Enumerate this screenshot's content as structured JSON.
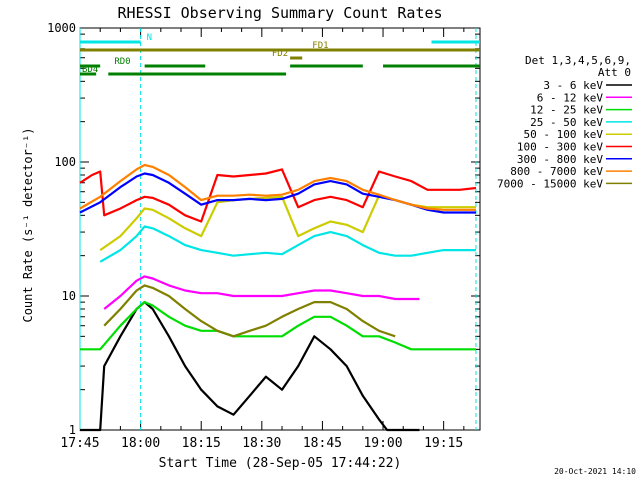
{
  "chart_data": {
    "type": "line",
    "title": "RHESSI Observing Summary Count Rates",
    "xlabel": "Start Time (28-Sep-05 17:44:22)",
    "ylabel": "Count Rate (s⁻¹ detector⁻¹)",
    "yscale": "log",
    "ylim": [
      1,
      1000
    ],
    "xlim_minutes": [
      0,
      99
    ],
    "x_unit": "minutes after 17:45",
    "x_ticks": [
      {
        "t": 0,
        "label": "17:45"
      },
      {
        "t": 15,
        "label": "18:00"
      },
      {
        "t": 30,
        "label": "18:15"
      },
      {
        "t": 45,
        "label": "18:30"
      },
      {
        "t": 60,
        "label": "18:45"
      },
      {
        "t": 75,
        "label": "19:00"
      },
      {
        "t": 90,
        "label": "19:15"
      }
    ],
    "y_ticks": [
      {
        "v": 1,
        "label": "1"
      },
      {
        "v": 10,
        "label": "10"
      },
      {
        "v": 100,
        "label": "100"
      },
      {
        "v": 1000,
        "label": "1000"
      }
    ],
    "legend_header": [
      "Det 1,3,4,5,6,9,",
      "Att 0"
    ],
    "legend_position": "right",
    "series": [
      {
        "name": "3 - 6 keV",
        "color": "#000000",
        "x": [
          0,
          5,
          6,
          10,
          14,
          16,
          18,
          22,
          26,
          30,
          34,
          38,
          42,
          46,
          50,
          54,
          58,
          62,
          66,
          70,
          74,
          76,
          80,
          84
        ],
        "y": [
          1,
          1,
          3,
          5,
          8,
          9,
          8,
          5,
          3,
          2,
          1.5,
          1.3,
          1.8,
          2.5,
          2,
          3,
          5,
          4,
          3,
          1.8,
          1.2,
          1,
          1,
          1
        ]
      },
      {
        "name": "6 - 12 keV",
        "color": "#ff00ff",
        "x": [
          6,
          10,
          14,
          16,
          18,
          22,
          26,
          30,
          34,
          38,
          42,
          46,
          50,
          54,
          58,
          62,
          66,
          70,
          74,
          78,
          84
        ],
        "y": [
          8,
          10,
          13,
          14,
          13.5,
          12,
          11,
          10.5,
          10.5,
          10,
          10,
          10,
          10,
          10.5,
          11,
          11,
          10.5,
          10,
          10,
          9.5,
          9.5
        ]
      },
      {
        "name": "12 - 25 keV",
        "color": "#00dd00",
        "x": [
          0,
          5,
          10,
          14,
          16,
          18,
          22,
          26,
          30,
          34,
          38,
          42,
          46,
          50,
          54,
          58,
          62,
          66,
          70,
          74,
          78,
          82,
          86,
          90,
          94,
          98
        ],
        "y": [
          4,
          4,
          6,
          8,
          9,
          8.5,
          7,
          6,
          5.5,
          5.5,
          5,
          5,
          5,
          5,
          6,
          7,
          7,
          6,
          5,
          5,
          4.5,
          4,
          4,
          4,
          4,
          4
        ]
      },
      {
        "name": "25 - 50 keV",
        "color": "#00e5e5",
        "x": [
          5,
          10,
          14,
          16,
          18,
          22,
          26,
          30,
          34,
          38,
          42,
          46,
          50,
          54,
          58,
          62,
          66,
          70,
          74,
          78,
          82,
          86,
          90,
          94,
          98
        ],
        "y": [
          18,
          22,
          28,
          33,
          32,
          28,
          24,
          22,
          21,
          20,
          20.5,
          21,
          20.5,
          24,
          28,
          30,
          28,
          24,
          21,
          20,
          20,
          21,
          22,
          22,
          22
        ]
      },
      {
        "name": "50 - 100 keV",
        "color": "#cccc00",
        "x": [
          5,
          10,
          14,
          16,
          18,
          22,
          26,
          30,
          34,
          38,
          42,
          46,
          50,
          54,
          58,
          62,
          66,
          70,
          74,
          78,
          82,
          86,
          90,
          94,
          98
        ],
        "y": [
          22,
          28,
          38,
          45,
          44,
          38,
          32,
          28,
          50,
          52,
          53,
          54,
          55,
          28,
          32,
          36,
          34,
          30,
          56,
          52,
          48,
          46,
          46,
          46,
          46
        ]
      },
      {
        "name": "100 - 300 keV",
        "color": "#ff0000",
        "x": [
          0,
          3,
          5,
          6,
          10,
          14,
          16,
          18,
          22,
          26,
          30,
          34,
          38,
          42,
          46,
          50,
          54,
          58,
          62,
          66,
          70,
          74,
          78,
          82,
          86,
          90,
          94,
          98
        ],
        "y": [
          70,
          80,
          85,
          40,
          45,
          52,
          55,
          54,
          48,
          40,
          36,
          80,
          78,
          80,
          82,
          88,
          46,
          52,
          55,
          52,
          46,
          85,
          78,
          72,
          62,
          62,
          62,
          64
        ]
      },
      {
        "name": "300 - 800 keV",
        "color": "#0000ff",
        "x": [
          0,
          5,
          10,
          14,
          16,
          18,
          22,
          26,
          30,
          34,
          38,
          42,
          46,
          50,
          54,
          58,
          62,
          66,
          70,
          74,
          78,
          82,
          86,
          90,
          94,
          98
        ],
        "y": [
          42,
          50,
          65,
          78,
          82,
          80,
          70,
          58,
          48,
          52,
          52,
          53,
          52,
          53,
          58,
          68,
          72,
          68,
          58,
          55,
          52,
          48,
          44,
          42,
          42,
          42
        ]
      },
      {
        "name": "800 - 7000 keV",
        "color": "#ff8000",
        "x": [
          0,
          5,
          10,
          14,
          16,
          18,
          22,
          26,
          30,
          34,
          38,
          42,
          46,
          50,
          54,
          58,
          62,
          66,
          70,
          74,
          78,
          82,
          86,
          90,
          94,
          98
        ],
        "y": [
          45,
          55,
          72,
          88,
          95,
          92,
          80,
          65,
          52,
          56,
          56,
          57,
          56,
          57,
          62,
          72,
          76,
          72,
          62,
          57,
          52,
          48,
          45,
          44,
          44,
          44
        ]
      },
      {
        "name": "7000 - 15000 keV",
        "color": "#808000",
        "x": [
          6,
          10,
          14,
          16,
          18,
          22,
          26,
          30,
          34,
          38,
          42,
          46,
          50,
          54,
          58,
          62,
          66,
          70,
          74,
          78
        ],
        "y": [
          6,
          8,
          11,
          12,
          11.5,
          10,
          8,
          6.5,
          5.5,
          5,
          5.5,
          6,
          7,
          8,
          9,
          9,
          8,
          6.5,
          5.5,
          5
        ]
      }
    ],
    "flags": [
      {
        "name": "N",
        "color": "#00e5e5",
        "level": 0,
        "segments": [
          [
            0,
            15
          ],
          [
            87,
            99
          ]
        ],
        "label_at": 16
      },
      {
        "name": "FD1",
        "color": "#808000",
        "level": 1,
        "segments": [
          [
            0,
            99
          ]
        ],
        "label_at": 57
      },
      {
        "name": "FD2",
        "color": "#808000",
        "level": 2,
        "segments": [
          [
            52,
            55
          ]
        ],
        "label_at": 47
      },
      {
        "name": "RD0",
        "color": "#008000",
        "level": 3,
        "segments": [
          [
            0,
            5
          ],
          [
            16,
            31
          ],
          [
            52,
            70
          ],
          [
            75,
            99
          ]
        ],
        "label_at": 8
      },
      {
        "name": "BD4",
        "color": "#008000",
        "level": 4,
        "segments": [
          [
            0,
            4
          ],
          [
            7,
            51
          ]
        ],
        "label_at": 0
      }
    ],
    "vlines": [
      {
        "t": 0,
        "color": "#00e5e5",
        "style": "solid"
      },
      {
        "t": 15,
        "color": "#00e5e5",
        "style": "dashed"
      },
      {
        "t": 98,
        "color": "#00e5e5",
        "style": "dashed"
      }
    ]
  },
  "footer": {
    "timestamp": "20-Oct-2021 14:10"
  }
}
